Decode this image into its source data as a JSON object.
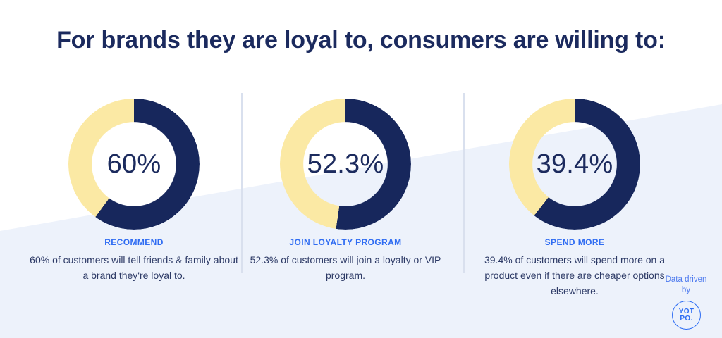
{
  "title": "For brands they are loyal to, consumers are willing to:",
  "colors": {
    "navy": "#17275c",
    "yellow": "#fbe9a4",
    "label_blue": "#2f6cf2",
    "title_navy": "#1b2a5e",
    "body_text": "#2d3a66",
    "wedge_background": "#edf2fb",
    "divider": "#d9e0ee",
    "credit_blue": "#4e7bef",
    "logo_blue": "#2c6cf4"
  },
  "stats": [
    {
      "value_label": "60%",
      "label": "RECOMMEND",
      "description_lines": [
        "60% of customers will tell friends & family about",
        "a brand they're loyal to."
      ]
    },
    {
      "value_label": "52.3%",
      "label": "JOIN LOYALTY PROGRAM",
      "description_lines": [
        "52.3% of customers will join a loyalty or VIP",
        "program."
      ]
    },
    {
      "value_label": "39.4%",
      "label": "SPEND MORE",
      "description_lines": [
        "39.4% of customers will spend more on a",
        "product even if there are cheaper options",
        "elsewhere."
      ]
    }
  ],
  "chart_data": [
    {
      "type": "donut",
      "title": "RECOMMEND",
      "center_text": "60%",
      "value_pct": 60,
      "start_angle_deg": 0,
      "direction": "clockwise",
      "segments": [
        {
          "name": "navy-arc",
          "value": 60,
          "color": "#17275c"
        },
        {
          "name": "yellow-arc",
          "value": 40,
          "color": "#fbe9a4"
        }
      ]
    },
    {
      "type": "donut",
      "title": "JOIN LOYALTY PROGRAM",
      "center_text": "52.3%",
      "value_pct": 52.3,
      "start_angle_deg": 0,
      "direction": "clockwise",
      "segments": [
        {
          "name": "navy-arc",
          "value": 52.3,
          "color": "#17275c"
        },
        {
          "name": "yellow-arc",
          "value": 47.7,
          "color": "#fbe9a4"
        }
      ]
    },
    {
      "type": "donut",
      "title": "SPEND MORE",
      "center_text": "39.4%",
      "value_pct": 39.4,
      "start_angle_deg": 0,
      "direction": "clockwise",
      "segments": [
        {
          "name": "navy-arc",
          "value": 60.6,
          "color": "#17275c"
        },
        {
          "name": "yellow-arc",
          "value": 39.4,
          "color": "#fbe9a4"
        }
      ]
    }
  ],
  "footer": {
    "credit": "Data driven by",
    "logo_line1": "YOT",
    "logo_line2": "PO."
  }
}
